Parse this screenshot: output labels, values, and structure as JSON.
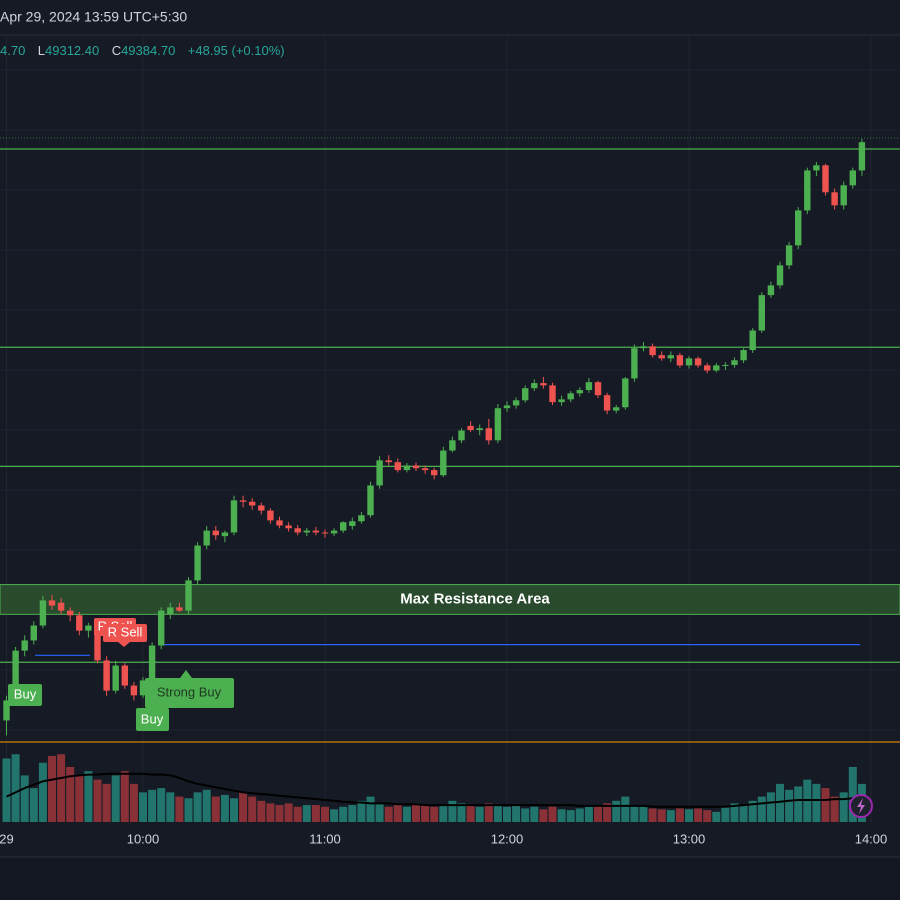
{
  "header": {
    "datetime": "Apr 29, 2024 13:59 UTC+5:30",
    "open_partial": "4.70",
    "low": {
      "label": "L",
      "value": "49312.40"
    },
    "close": {
      "label": "C",
      "value": "49384.70"
    },
    "change": "+48.95 (+0.10%)"
  },
  "chart_data": {
    "type": "candlestick",
    "up_color": "#4caf50",
    "down_color": "#ef5350",
    "ylim": [
      48100,
      49615
    ],
    "xticks": [
      {
        "value": 0,
        "label": "29"
      },
      {
        "value": 15,
        "label": "10:00"
      },
      {
        "value": 35,
        "label": "11:00"
      },
      {
        "value": 55,
        "label": "12:00"
      },
      {
        "value": 75,
        "label": "13:00"
      },
      {
        "value": 95,
        "label": "14:00"
      }
    ],
    "grid": true,
    "candles": [
      [
        48142,
        48195,
        48110,
        48185
      ],
      [
        48185,
        48300,
        48175,
        48292
      ],
      [
        48292,
        48325,
        48280,
        48314
      ],
      [
        48314,
        48355,
        48305,
        48346
      ],
      [
        48346,
        48410,
        48340,
        48400
      ],
      [
        48400,
        48412,
        48380,
        48389
      ],
      [
        48395,
        48405,
        48370,
        48378
      ],
      [
        48378,
        48385,
        48355,
        48368
      ],
      [
        48368,
        48375,
        48325,
        48335
      ],
      [
        48335,
        48352,
        48320,
        48346
      ],
      [
        48346,
        48350,
        48265,
        48271
      ],
      [
        48271,
        48280,
        48195,
        48206
      ],
      [
        48206,
        48270,
        48200,
        48260
      ],
      [
        48260,
        48265,
        48210,
        48217
      ],
      [
        48217,
        48225,
        48185,
        48196
      ],
      [
        48196,
        48235,
        48190,
        48228
      ],
      [
        48228,
        48310,
        48220,
        48303
      ],
      [
        48303,
        48385,
        48295,
        48378
      ],
      [
        48370,
        48395,
        48360,
        48385
      ],
      [
        48385,
        48395,
        48375,
        48378
      ],
      [
        48378,
        48450,
        48370,
        48443
      ],
      [
        48443,
        48525,
        48435,
        48518
      ],
      [
        48518,
        48560,
        48510,
        48550
      ],
      [
        48550,
        48560,
        48530,
        48540
      ],
      [
        48538,
        48550,
        48525,
        48546
      ],
      [
        48546,
        48625,
        48540,
        48615
      ],
      [
        48615,
        48625,
        48600,
        48612
      ],
      [
        48612,
        48620,
        48595,
        48604
      ],
      [
        48604,
        48610,
        48585,
        48593
      ],
      [
        48593,
        48598,
        48565,
        48572
      ],
      [
        48572,
        48580,
        48555,
        48561
      ],
      [
        48561,
        48568,
        48548,
        48555
      ],
      [
        48555,
        48562,
        48540,
        48546
      ],
      [
        48546,
        48556,
        48538,
        48550
      ],
      [
        48550,
        48558,
        48540,
        48546
      ],
      [
        48546,
        48552,
        48535,
        48544
      ],
      [
        48544,
        48555,
        48538,
        48550
      ],
      [
        48550,
        48570,
        48545,
        48568
      ],
      [
        48560,
        48578,
        48552,
        48570
      ],
      [
        48570,
        48590,
        48565,
        48583
      ],
      [
        48583,
        48655,
        48578,
        48647
      ],
      [
        48647,
        48710,
        48640,
        48701
      ],
      [
        48701,
        48712,
        48690,
        48697
      ],
      [
        48697,
        48705,
        48675,
        48680
      ],
      [
        48680,
        48695,
        48675,
        48690
      ],
      [
        48690,
        48696,
        48678,
        48684
      ],
      [
        48684,
        48690,
        48672,
        48680
      ],
      [
        48680,
        48685,
        48660,
        48669
      ],
      [
        48669,
        48730,
        48665,
        48722
      ],
      [
        48722,
        48752,
        48718,
        48744
      ],
      [
        48744,
        48770,
        48738,
        48765
      ],
      [
        48775,
        48785,
        48762,
        48766
      ],
      [
        48766,
        48778,
        48755,
        48770
      ],
      [
        48770,
        48790,
        48735,
        48744
      ],
      [
        48744,
        48822,
        48738,
        48813
      ],
      [
        48813,
        48828,
        48805,
        48819
      ],
      [
        48819,
        48836,
        48812,
        48830
      ],
      [
        48830,
        48862,
        48825,
        48856
      ],
      [
        48856,
        48875,
        48850,
        48867
      ],
      [
        48867,
        48880,
        48855,
        48862
      ],
      [
        48862,
        48868,
        48820,
        48826
      ],
      [
        48826,
        48840,
        48818,
        48832
      ],
      [
        48832,
        48850,
        48826,
        48845
      ],
      [
        48845,
        48858,
        48838,
        48852
      ],
      [
        48852,
        48878,
        48846,
        48869
      ],
      [
        48869,
        48872,
        48835,
        48841
      ],
      [
        48841,
        48846,
        48800,
        48808
      ],
      [
        48808,
        48820,
        48802,
        48815
      ],
      [
        48815,
        48880,
        48810,
        48877
      ],
      [
        48877,
        48950,
        48870,
        48942
      ],
      [
        48942,
        48955,
        48935,
        48946
      ],
      [
        48946,
        48952,
        48922,
        48927
      ],
      [
        48927,
        48935,
        48915,
        48920
      ],
      [
        48920,
        48935,
        48912,
        48927
      ],
      [
        48927,
        48932,
        48900,
        48905
      ],
      [
        48905,
        48925,
        48898,
        48920
      ],
      [
        48920,
        48924,
        48900,
        48905
      ],
      [
        48905,
        48910,
        48888,
        48894
      ],
      [
        48894,
        48910,
        48890,
        48905
      ],
      [
        48905,
        48912,
        48895,
        48906
      ],
      [
        48906,
        48922,
        48900,
        48916
      ],
      [
        48916,
        48942,
        48910,
        48938
      ],
      [
        48938,
        48985,
        48932,
        48980
      ],
      [
        48980,
        49062,
        48975,
        49056
      ],
      [
        49056,
        49085,
        49050,
        49077
      ],
      [
        49077,
        49128,
        49070,
        49120
      ],
      [
        49120,
        49170,
        49112,
        49163
      ],
      [
        49163,
        49245,
        49155,
        49238
      ],
      [
        49238,
        49330,
        49230,
        49324
      ],
      [
        49324,
        49342,
        49312,
        49335
      ],
      [
        49335,
        49338,
        49270,
        49277
      ],
      [
        49277,
        49285,
        49240,
        49249
      ],
      [
        49249,
        49300,
        49240,
        49292
      ],
      [
        49292,
        49330,
        49285,
        49324
      ],
      [
        49324,
        49392,
        49312.4,
        49384.7
      ]
    ],
    "vlim": [
      0,
      85
    ],
    "volume": [
      75,
      80,
      55,
      40,
      70,
      78,
      80,
      65,
      55,
      60,
      50,
      45,
      55,
      60,
      45,
      35,
      38,
      40,
      35,
      30,
      28,
      35,
      38,
      30,
      32,
      28,
      35,
      30,
      25,
      22,
      20,
      22,
      18,
      20,
      20,
      18,
      15,
      18,
      20,
      25,
      30,
      22,
      18,
      20,
      18,
      22,
      20,
      18,
      20,
      25,
      22,
      20,
      18,
      22,
      20,
      18,
      20,
      16,
      18,
      15,
      18,
      15,
      14,
      16,
      18,
      20,
      22,
      25,
      30,
      20,
      18,
      16,
      15,
      14,
      16,
      15,
      16,
      14,
      12,
      18,
      22,
      20,
      25,
      30,
      35,
      45,
      38,
      42,
      50,
      45,
      40,
      30,
      35,
      65,
      45
    ],
    "volume_ma": [
      30,
      35,
      40,
      44,
      48,
      50,
      52,
      54,
      55,
      56,
      56,
      57,
      57,
      57,
      57,
      57,
      56,
      56,
      55,
      52,
      48,
      45,
      43,
      41,
      39,
      37,
      35,
      34,
      33,
      32,
      31,
      30,
      29,
      28,
      27,
      26,
      25,
      24,
      23,
      23,
      22,
      22,
      22,
      21,
      21,
      21,
      20,
      20,
      20,
      20,
      20,
      20,
      20,
      20,
      20,
      20,
      20,
      20,
      20,
      20,
      20,
      20,
      20,
      19,
      19,
      19,
      19,
      19,
      19,
      19,
      19,
      18,
      18,
      18,
      18,
      18,
      18,
      18,
      18,
      18,
      19,
      20,
      21,
      22,
      23,
      24,
      25,
      26,
      26,
      26,
      26,
      27,
      27,
      28,
      28
    ],
    "levels": [
      {
        "value": 49370,
        "color": "#4caf50"
      },
      {
        "value": 48944,
        "color": "#4caf50"
      },
      {
        "value": 48688,
        "color": "#4caf50"
      },
      {
        "value": 48267,
        "color": "#4caf50"
      },
      {
        "value": 48305,
        "color": "#2962ff"
      },
      {
        "value": 48282,
        "color": "#2962ff"
      }
    ],
    "resistance_area": {
      "label": "Max Resistance Area",
      "range": [
        48370,
        48434
      ],
      "color": "#4caf50"
    },
    "signals": [
      {
        "text": "R Sell"
      },
      {
        "text": "R Sell"
      },
      {
        "text": "Buy"
      },
      {
        "text": "Buy"
      },
      {
        "text": "Strong Buy"
      }
    ]
  }
}
